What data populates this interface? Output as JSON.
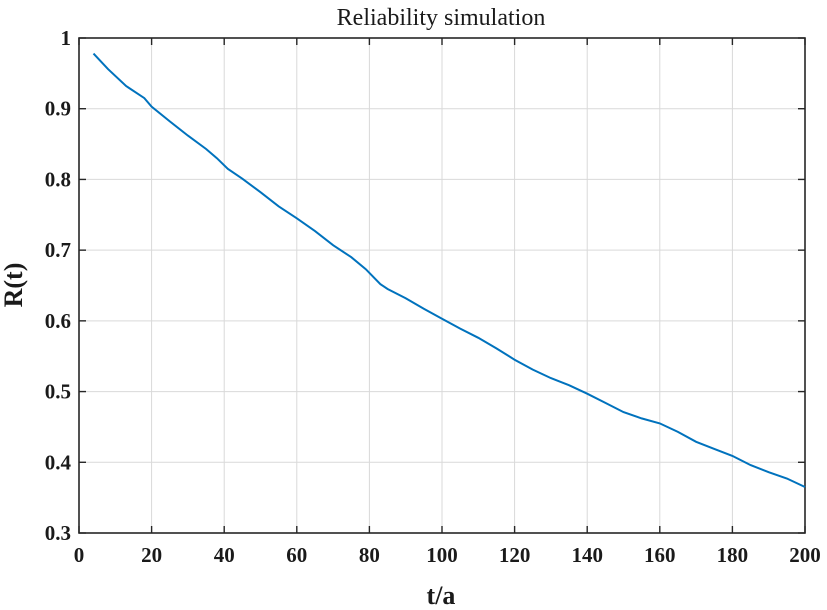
{
  "chart_data": {
    "type": "line",
    "title": "Reliability simulation",
    "xlabel": "t/a",
    "ylabel": "R(t)",
    "xlim": [
      0,
      200
    ],
    "ylim": [
      0.3,
      1
    ],
    "xticks": [
      "0",
      "20",
      "40",
      "60",
      "80",
      "100",
      "120",
      "140",
      "160",
      "180",
      "200"
    ],
    "yticks": [
      "0.3",
      "0.4",
      "0.5",
      "0.6",
      "0.7",
      "0.8",
      "0.9",
      "1"
    ],
    "grid": true,
    "color": "#0072BD",
    "series": [
      {
        "x": [
          4,
          8,
          13,
          18,
          20,
          25,
          30,
          35,
          38,
          41,
          45,
          50,
          55,
          60,
          65,
          70,
          75,
          79,
          83,
          85,
          90,
          95,
          100,
          105,
          110,
          115,
          120,
          125,
          130,
          135,
          140,
          145,
          150,
          155,
          160,
          165,
          170,
          175,
          180,
          185,
          190,
          195,
          200
        ],
        "y": [
          0.978,
          0.956,
          0.932,
          0.915,
          0.903,
          0.882,
          0.862,
          0.843,
          0.83,
          0.815,
          0.801,
          0.782,
          0.762,
          0.745,
          0.727,
          0.707,
          0.69,
          0.673,
          0.652,
          0.645,
          0.632,
          0.617,
          0.603,
          0.589,
          0.576,
          0.561,
          0.545,
          0.531,
          0.519,
          0.509,
          0.497,
          0.484,
          0.471,
          0.462,
          0.455,
          0.443,
          0.429,
          0.419,
          0.409,
          0.396,
          0.386,
          0.377,
          0.365
        ]
      }
    ]
  }
}
